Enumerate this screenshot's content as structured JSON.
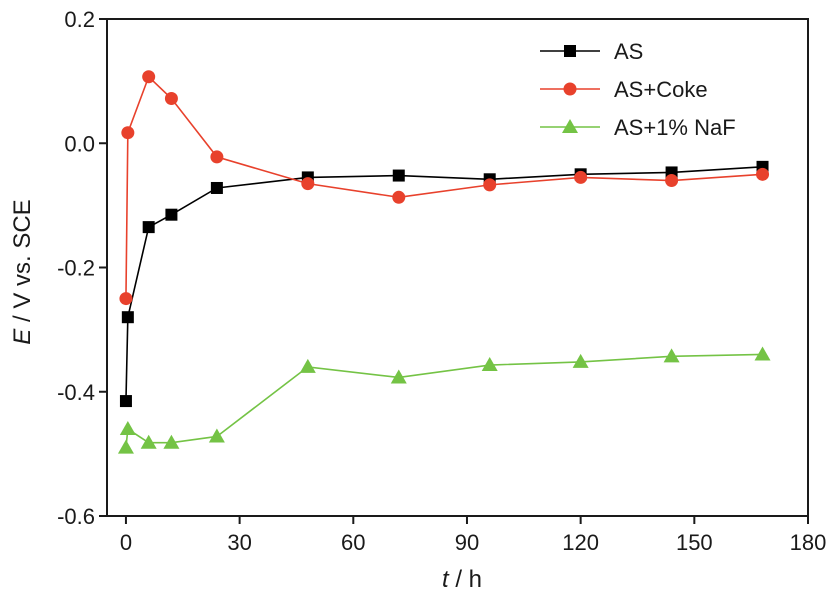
{
  "chart_data": {
    "type": "line",
    "xlabel": {
      "var": "t",
      "unit": " / h"
    },
    "ylabel": {
      "var": "E",
      "unit": "  / V vs. SCE"
    },
    "xlim": [
      -5,
      180
    ],
    "ylim": [
      -0.6,
      0.2
    ],
    "xticks": [
      0,
      30,
      60,
      90,
      120,
      150,
      180
    ],
    "yticks": [
      0.2,
      0.0,
      -0.2,
      -0.4,
      -0.6
    ],
    "ytick_labels": [
      "0.2",
      "0.0",
      "-0.2",
      "-0.4",
      "-0.6"
    ],
    "xtick_labels": [
      "0",
      "30",
      "60",
      "90",
      "120",
      "150",
      "180"
    ],
    "grid": false,
    "legend_position": "top-right",
    "series": [
      {
        "name": "AS",
        "color": "#000000",
        "marker": "square",
        "points": [
          [
            0,
            -0.415
          ],
          [
            0.5,
            -0.28
          ],
          [
            6,
            -0.135
          ],
          [
            12,
            -0.115
          ],
          [
            24,
            -0.072
          ],
          [
            48,
            -0.055
          ],
          [
            72,
            -0.052
          ],
          [
            96,
            -0.058
          ],
          [
            120,
            -0.05
          ],
          [
            144,
            -0.047
          ],
          [
            168,
            -0.038
          ]
        ]
      },
      {
        "name": "AS+Coke",
        "color": "#e8412c",
        "marker": "circle",
        "points": [
          [
            0,
            -0.25
          ],
          [
            0.5,
            0.017
          ],
          [
            6,
            0.107
          ],
          [
            12,
            0.072
          ],
          [
            24,
            -0.022
          ],
          [
            48,
            -0.065
          ],
          [
            72,
            -0.087
          ],
          [
            96,
            -0.067
          ],
          [
            120,
            -0.055
          ],
          [
            144,
            -0.06
          ],
          [
            168,
            -0.05
          ]
        ]
      },
      {
        "name": "AS+1% NaF",
        "color": "#74c345",
        "marker": "triangle",
        "points": [
          [
            0,
            -0.49
          ],
          [
            0.5,
            -0.46
          ],
          [
            6,
            -0.482
          ],
          [
            12,
            -0.482
          ],
          [
            24,
            -0.472
          ],
          [
            48,
            -0.36
          ],
          [
            72,
            -0.377
          ],
          [
            96,
            -0.357
          ],
          [
            120,
            -0.352
          ],
          [
            144,
            -0.343
          ],
          [
            168,
            -0.34
          ]
        ]
      }
    ]
  }
}
